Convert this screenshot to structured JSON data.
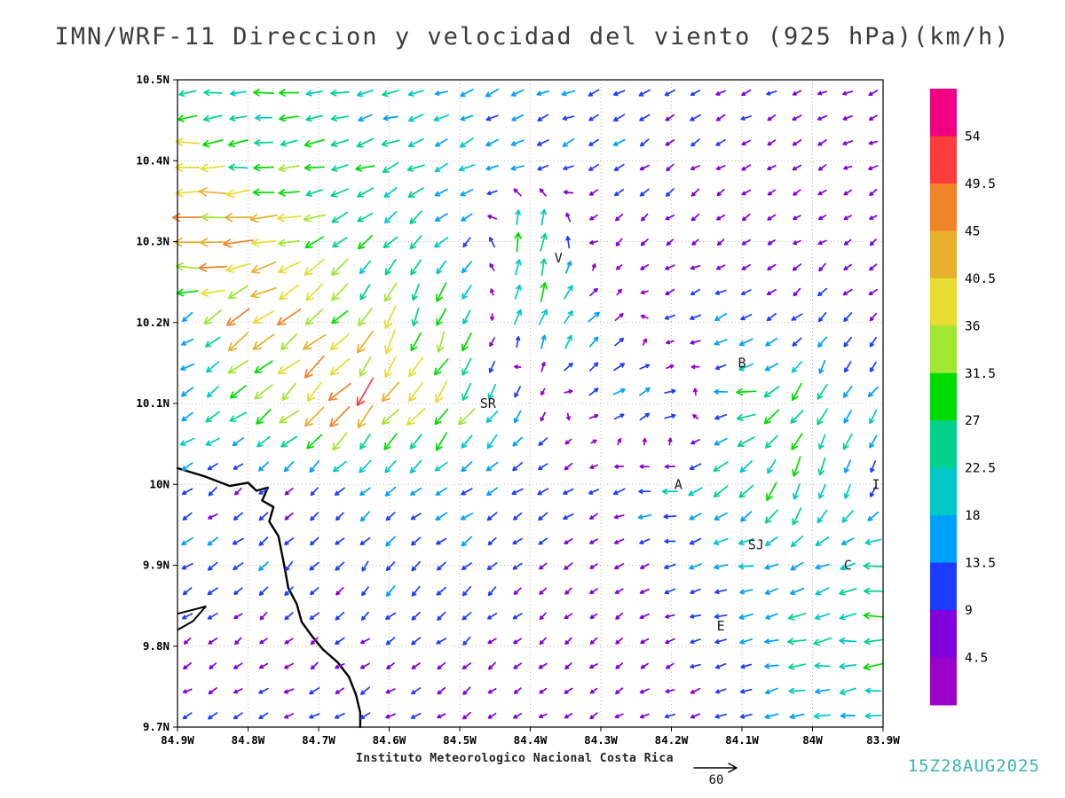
{
  "chart_data": {
    "type": "vector_field",
    "title": "IMN/WRF-11 Direccion y velocidad del viento (925 hPa)(km/h)",
    "model": "IMN/WRF-11",
    "variable": "Direccion y velocidad del viento",
    "level": "925 hPa",
    "units": "km/h",
    "valid_time": "15Z28AUG2025",
    "institute": "Instituto Meteorologico Nacional Costa Rica",
    "plot": {
      "lon_min_w": 83.9,
      "lon_max_w": 84.9,
      "lat_min": 9.7,
      "lat_max": 10.5,
      "grid": "dotted"
    },
    "xticks": {
      "labels": [
        "84.9W",
        "84.8W",
        "84.7W",
        "84.6W",
        "84.5W",
        "84.4W",
        "84.3W",
        "84.2W",
        "84.1W",
        "84W",
        "83.9W"
      ],
      "lons": [
        84.9,
        84.8,
        84.7,
        84.6,
        84.5,
        84.4,
        84.3,
        84.2,
        84.1,
        84.0,
        83.9
      ]
    },
    "yticks": {
      "labels": [
        "10.5N",
        "10.4N",
        "10.3N",
        "10.2N",
        "10.1N",
        "10N",
        "9.9N",
        "9.8N",
        "9.7N"
      ],
      "lats": [
        10.5,
        10.4,
        10.3,
        10.2,
        10.1,
        10.0,
        9.9,
        9.8,
        9.7
      ]
    },
    "colorbar": {
      "levels": [
        4.5,
        9,
        13.5,
        18,
        22.5,
        27,
        31.5,
        36,
        40.5,
        45,
        49.5,
        54
      ],
      "colors": [
        "#9a00c8",
        "#8200dc",
        "#1e3cff",
        "#00a0ff",
        "#00c8c8",
        "#00d28c",
        "#00dc00",
        "#a0e632",
        "#e6dc32",
        "#e6af2d",
        "#f08228",
        "#fa3c3c",
        "#f00082"
      ]
    },
    "reference_vector": {
      "label": "60",
      "speed_kmh": 60
    },
    "stations": [
      {
        "label": "V",
        "lon_w": 84.36,
        "lat": 10.28
      },
      {
        "label": "B",
        "lon_w": 84.1,
        "lat": 10.15
      },
      {
        "label": "SR",
        "lon_w": 84.46,
        "lat": 10.1
      },
      {
        "label": "A",
        "lon_w": 84.19,
        "lat": 10.0
      },
      {
        "label": "I",
        "lon_w": 83.91,
        "lat": 10.0
      },
      {
        "label": "SJ",
        "lon_w": 84.08,
        "lat": 9.925
      },
      {
        "label": "C",
        "lon_w": 83.95,
        "lat": 9.9
      },
      {
        "label": "E",
        "lon_w": 84.13,
        "lat": 9.825
      }
    ],
    "coastline": {
      "main": [
        [
          84.9,
          10.02
        ],
        [
          84.862,
          10.01
        ],
        [
          84.826,
          9.998
        ],
        [
          84.8,
          10.002
        ],
        [
          84.788,
          9.992
        ],
        [
          84.772,
          9.996
        ],
        [
          84.78,
          9.98
        ],
        [
          84.764,
          9.972
        ],
        [
          84.77,
          9.954
        ],
        [
          84.757,
          9.936
        ],
        [
          84.752,
          9.914
        ],
        [
          84.747,
          9.892
        ],
        [
          84.743,
          9.872
        ],
        [
          84.731,
          9.852
        ],
        [
          84.724,
          9.83
        ],
        [
          84.709,
          9.812
        ],
        [
          84.694,
          9.796
        ],
        [
          84.673,
          9.78
        ],
        [
          84.657,
          9.762
        ],
        [
          84.647,
          9.74
        ],
        [
          84.641,
          9.718
        ],
        [
          84.641,
          9.7
        ]
      ],
      "spit": [
        [
          84.9,
          9.84
        ],
        [
          84.86,
          9.849
        ],
        [
          84.878,
          9.831
        ],
        [
          84.9,
          9.82
        ]
      ]
    },
    "wind_grid": {
      "lons": [
        84.9,
        84.8,
        84.7,
        84.6,
        84.5,
        84.4,
        84.3,
        84.2,
        84.1,
        84.0,
        83.9
      ],
      "lats": [
        10.5,
        10.4,
        10.3,
        10.2,
        10.1,
        10.0,
        9.9,
        9.8,
        9.7
      ],
      "u_kmh": [
        [
          -20,
          -24,
          -26,
          -18,
          -16,
          -14,
          -12,
          -10,
          -9,
          -8,
          -8
        ],
        [
          -34,
          -30,
          -26,
          -20,
          -16,
          -13,
          -10,
          -8,
          -7,
          -6,
          -6
        ],
        [
          -48,
          -40,
          -28,
          -16,
          -12,
          8,
          -6,
          -5,
          -5,
          -5,
          -4
        ],
        [
          -10,
          -34,
          -28,
          -16,
          -8,
          10,
          12,
          -12,
          -12,
          -8,
          -6
        ],
        [
          -18,
          -20,
          -28,
          -30,
          -20,
          -6,
          10,
          16,
          -26,
          -12,
          -10
        ],
        [
          -8,
          -6,
          -8,
          -10,
          -12,
          -10,
          -8,
          -18,
          -16,
          -8,
          -4
        ],
        [
          -12,
          -10,
          -8,
          -8,
          -10,
          -6,
          -5,
          -10,
          -18,
          -16,
          -26
        ],
        [
          -6,
          -5,
          -6,
          -8,
          -6,
          -5,
          -4,
          -6,
          -10,
          -24,
          -26
        ],
        [
          -8,
          -8,
          -10,
          -8,
          -6,
          -5,
          -5,
          -8,
          -12,
          -18,
          -20
        ]
      ],
      "v_kmh": [
        [
          -2,
          -2,
          -3,
          -4,
          -5,
          -5,
          -5,
          -4,
          -4,
          -3,
          -3
        ],
        [
          -3,
          -4,
          -6,
          -8,
          -8,
          -7,
          -6,
          -5,
          -4,
          -3,
          -3
        ],
        [
          6,
          -6,
          -12,
          -14,
          -14,
          34,
          -6,
          -4,
          -3,
          -3,
          -3
        ],
        [
          -8,
          -26,
          -26,
          -30,
          -26,
          26,
          10,
          -4,
          -6,
          -8,
          -6
        ],
        [
          -10,
          -14,
          -30,
          -36,
          -30,
          -10,
          6,
          6,
          -4,
          -24,
          -12
        ],
        [
          -6,
          -5,
          -6,
          -8,
          -8,
          -6,
          -4,
          -2,
          -20,
          -26,
          -10
        ],
        [
          -6,
          -8,
          -8,
          -10,
          -8,
          -6,
          -4,
          -2,
          -4,
          -8,
          -2
        ],
        [
          -4,
          -4,
          -5,
          -5,
          -5,
          -4,
          -3,
          -3,
          -4,
          -3,
          -2
        ],
        [
          -4,
          -4,
          -5,
          -4,
          -4,
          -3,
          -3,
          -3,
          -4,
          -4,
          -3
        ]
      ]
    }
  }
}
